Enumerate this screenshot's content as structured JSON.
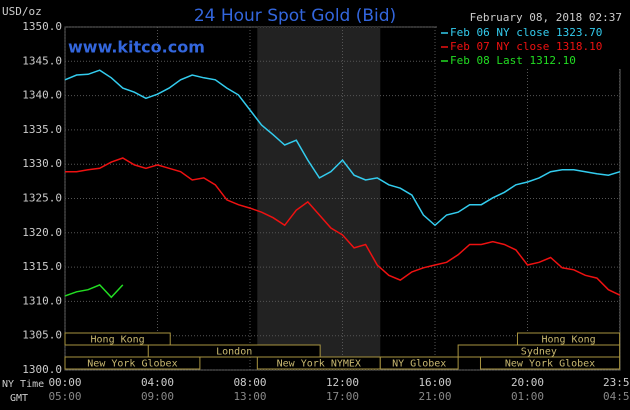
{
  "chart_data": {
    "type": "line",
    "title": "24 Hour Spot Gold (Bid)",
    "y_label": "USD/oz",
    "watermark": "www.kitco.com",
    "timestamp": "February 08, 2018 02:37",
    "x_row_label": "NY Time",
    "x2_row_label": "GMT",
    "x": [
      0,
      30,
      60,
      90,
      120,
      150,
      180,
      210,
      240,
      270,
      300,
      330,
      360,
      390,
      420,
      450,
      480,
      510,
      540,
      570,
      600,
      630,
      660,
      690,
      720,
      750,
      780,
      810,
      840,
      870,
      900,
      930,
      960,
      990,
      1020,
      1050,
      1080,
      1110,
      1140,
      1170,
      1200,
      1230,
      1260,
      1290,
      1320,
      1350,
      1380,
      1410,
      1440
    ],
    "xlim": [
      0,
      1440
    ],
    "xticks": [
      {
        "value": 0,
        "label": "00:00"
      },
      {
        "value": 240,
        "label": "04:00"
      },
      {
        "value": 480,
        "label": "08:00"
      },
      {
        "value": 720,
        "label": "12:00"
      },
      {
        "value": 960,
        "label": "16:00"
      },
      {
        "value": 1200,
        "label": "20:00"
      },
      {
        "value": 1439,
        "label": "23:59"
      }
    ],
    "x2ticks": [
      {
        "value": 0,
        "label": "05:00"
      },
      {
        "value": 240,
        "label": "09:00"
      },
      {
        "value": 480,
        "label": "13:00"
      },
      {
        "value": 720,
        "label": "17:00"
      },
      {
        "value": 960,
        "label": "21:00"
      },
      {
        "value": 1200,
        "label": "01:00"
      },
      {
        "value": 1439,
        "label": "04:59"
      }
    ],
    "ylim": [
      1300,
      1350
    ],
    "yticks": [
      {
        "value": 1300,
        "label": "1300.0"
      },
      {
        "value": 1305,
        "label": "1305.0"
      },
      {
        "value": 1310,
        "label": "1310.0"
      },
      {
        "value": 1315,
        "label": "1315.0"
      },
      {
        "value": 1320,
        "label": "1320.0"
      },
      {
        "value": 1325,
        "label": "1325.0"
      },
      {
        "value": 1330,
        "label": "1330.0"
      },
      {
        "value": 1335,
        "label": "1335.0"
      },
      {
        "value": 1340,
        "label": "1340.0"
      },
      {
        "value": 1345,
        "label": "1345.0"
      },
      {
        "value": 1350,
        "label": "1350.0"
      }
    ],
    "grid": true,
    "shaded_region": [
      499,
      818
    ],
    "sessions": [
      {
        "label": "Hong Kong",
        "start": 0,
        "end": 273,
        "row": 1
      },
      {
        "label": "London",
        "start": 216,
        "end": 662,
        "row": 2
      },
      {
        "label": "New York Globex",
        "start": 0,
        "end": 350,
        "row": 3
      },
      {
        "label": "New York NYMEX",
        "start": 499,
        "end": 818,
        "row": 3
      },
      {
        "label": "NY Globex",
        "start": 818,
        "end": 1020,
        "row": 3
      },
      {
        "label": "Hong Kong",
        "start": 1174,
        "end": 1439,
        "row": 1
      },
      {
        "label": "Sydney",
        "start": 1020,
        "end": 1439,
        "row": 2
      },
      {
        "label": "New York Globex",
        "start": 1078,
        "end": 1439,
        "row": 3
      }
    ],
    "series": [
      {
        "name": "Feb 06 NY close 1323.70",
        "color": "#33ccee",
        "values": [
          1342.3,
          1343.0,
          1343.1,
          1343.7,
          1342.6,
          1341.1,
          1340.5,
          1339.6,
          1340.2,
          1341.1,
          1342.3,
          1343.0,
          1342.6,
          1342.3,
          1341.1,
          1340.1,
          1337.9,
          1335.7,
          1334.3,
          1332.8,
          1333.5,
          1330.6,
          1328.0,
          1328.9,
          1330.6,
          1328.4,
          1327.7,
          1328.0,
          1327.0,
          1326.5,
          1325.5,
          1322.6,
          1321.1,
          1322.6,
          1323.0,
          1324.1,
          1324.1,
          1325.1,
          1325.9,
          1327.0,
          1327.4,
          1328.0,
          1328.9,
          1329.2,
          1329.2,
          1328.9,
          1328.6,
          1328.4,
          1328.9
        ]
      },
      {
        "name": "Feb 07 NY close 1318.10",
        "color": "#ee1111",
        "values": [
          1328.9,
          1328.9,
          1329.2,
          1329.4,
          1330.3,
          1330.9,
          1329.9,
          1329.4,
          1329.9,
          1329.4,
          1328.9,
          1327.7,
          1328.0,
          1327.0,
          1324.8,
          1324.1,
          1323.6,
          1323.0,
          1322.2,
          1321.1,
          1323.3,
          1324.5,
          1322.6,
          1320.7,
          1319.7,
          1317.8,
          1318.3,
          1315.3,
          1313.8,
          1313.1,
          1314.3,
          1314.9,
          1315.3,
          1315.7,
          1316.8,
          1318.3,
          1318.3,
          1318.7,
          1318.3,
          1317.5,
          1315.3,
          1315.7,
          1316.4,
          1314.9,
          1314.6,
          1313.8,
          1313.4,
          1311.7,
          1310.9
        ]
      },
      {
        "name": "Feb 08 Last 1312.10",
        "color": "#22dd22",
        "values": [
          1310.8,
          1311.4,
          1311.7,
          1312.4,
          1310.6,
          1312.4,
          null,
          null,
          null,
          null,
          null,
          null,
          null,
          null,
          null,
          null,
          null,
          null,
          null,
          null,
          null,
          null,
          null,
          null,
          null,
          null,
          null,
          null,
          null,
          null,
          null,
          null,
          null,
          null,
          null,
          null,
          null,
          null,
          null,
          null,
          null,
          null,
          null,
          null,
          null,
          null,
          null,
          null,
          null
        ]
      }
    ]
  }
}
